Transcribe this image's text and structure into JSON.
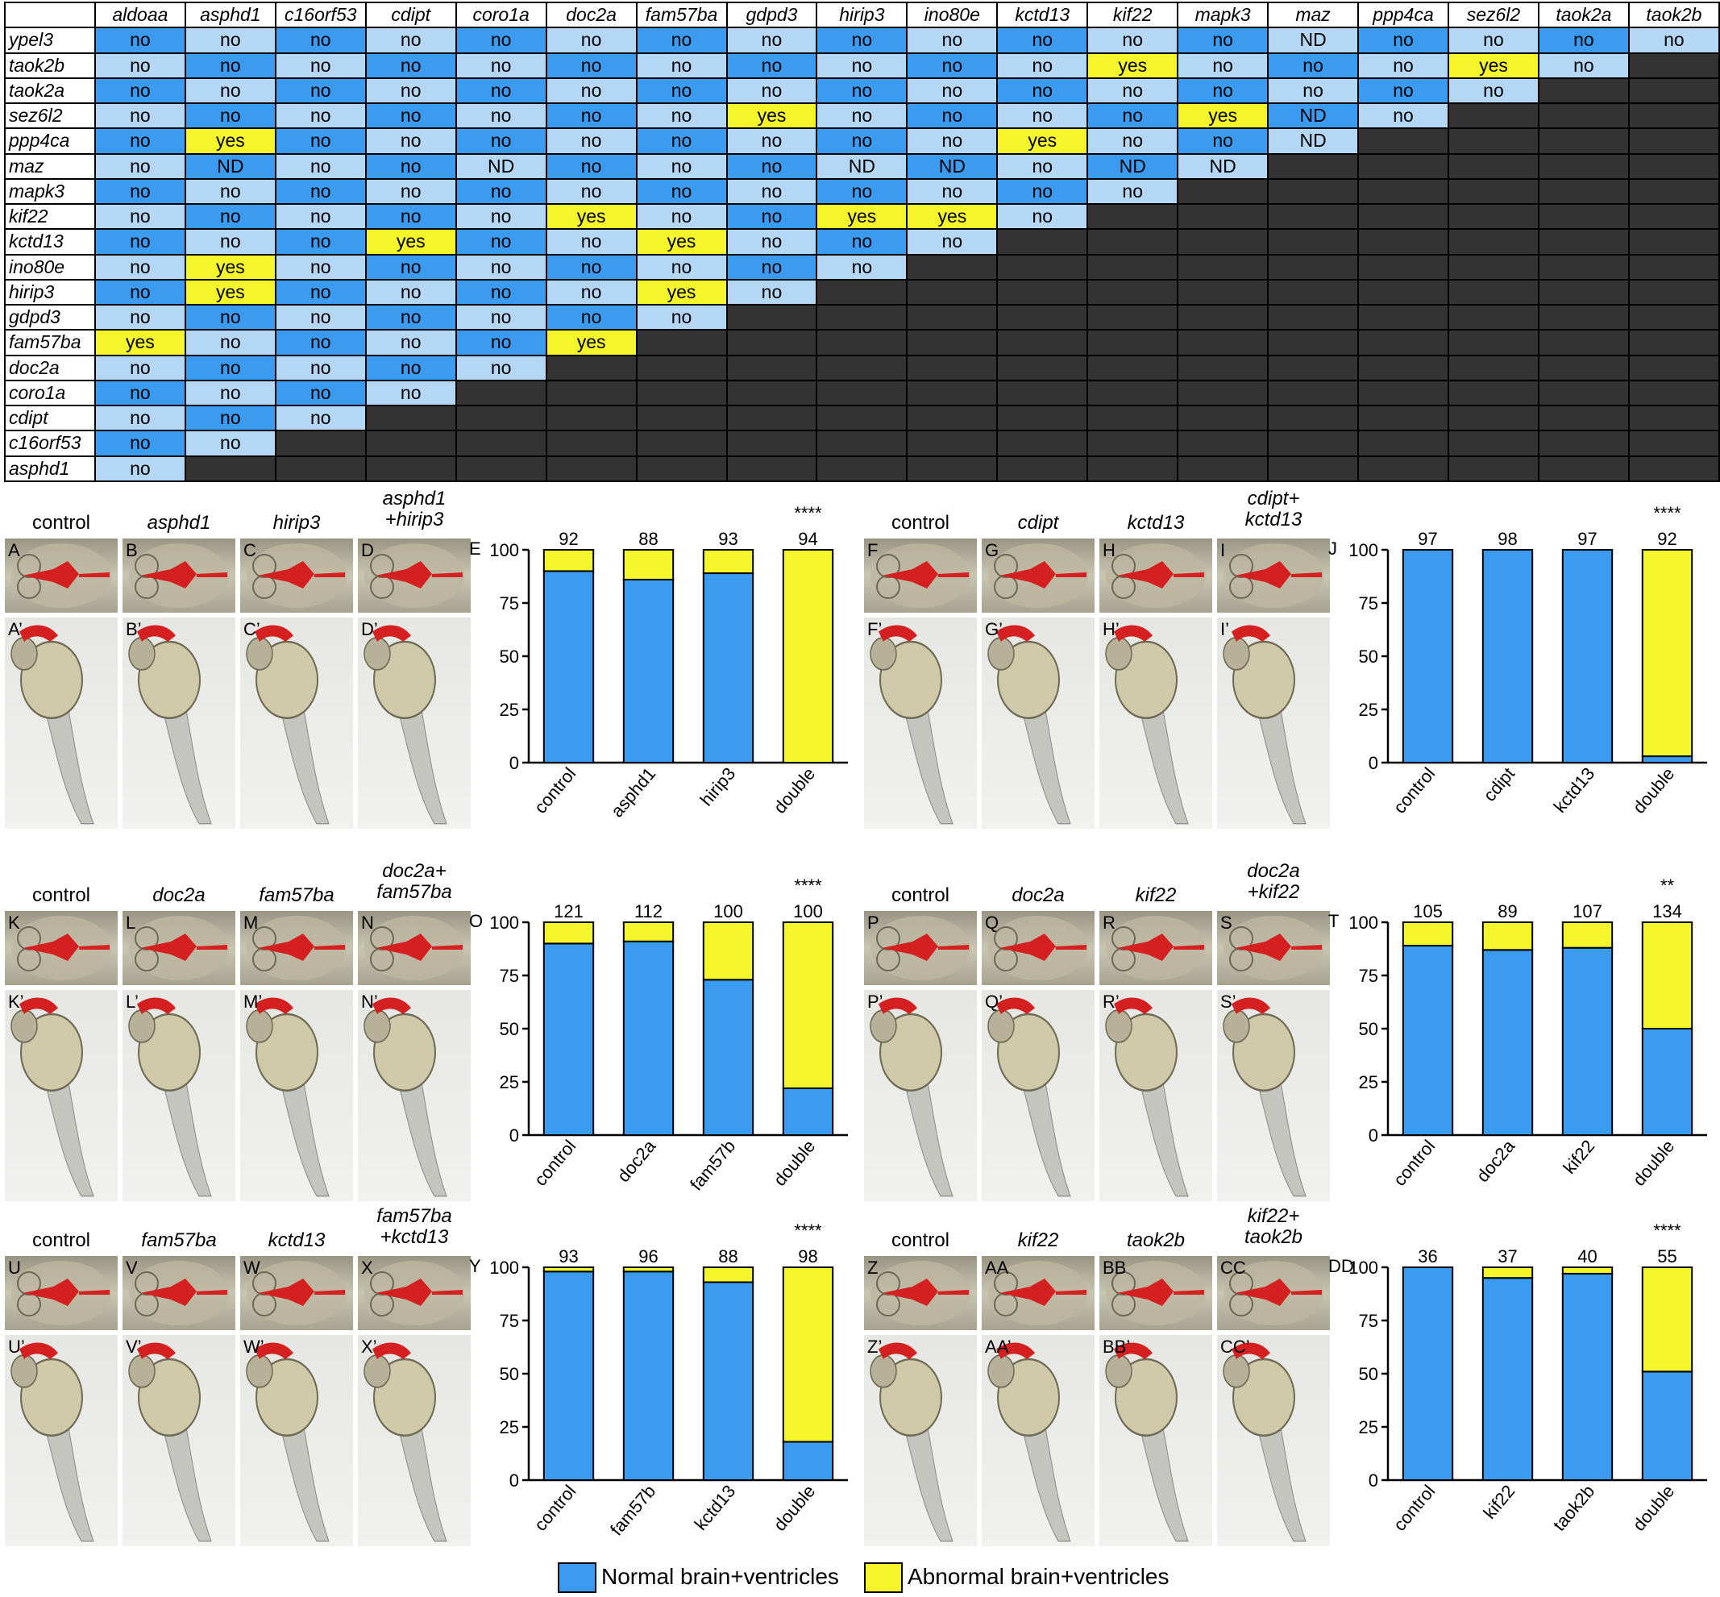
{
  "matrix": {
    "col_genes": [
      "aldoaa",
      "asphd1",
      "c16orf53",
      "cdipt",
      "coro1a",
      "doc2a",
      "fam57ba",
      "gdpd3",
      "hirip3",
      "ino80e",
      "kctd13",
      "kif22",
      "mapk3",
      "maz",
      "ppp4ca",
      "sez6l2",
      "taok2a",
      "taok2b"
    ],
    "row_genes": [
      "ypel3",
      "taok2b",
      "taok2a",
      "sez6l2",
      "ppp4ca",
      "maz",
      "mapk3",
      "kif22",
      "kctd13",
      "ino80e",
      "hirip3",
      "gdpd3",
      "fam57ba",
      "doc2a",
      "coro1a",
      "cdipt",
      "c16orf53",
      "asphd1"
    ],
    "cells": [
      [
        "no",
        "no",
        "no",
        "no",
        "no",
        "no",
        "no",
        "no",
        "no",
        "no",
        "no",
        "no",
        "no",
        "ND",
        "no",
        "no",
        "no",
        "no"
      ],
      [
        "no",
        "no",
        "no",
        "no",
        "no",
        "no",
        "no",
        "no",
        "no",
        "no",
        "no",
        "yes",
        "no",
        "no",
        "no",
        "yes",
        "no"
      ],
      [
        "no",
        "no",
        "no",
        "no",
        "no",
        "no",
        "no",
        "no",
        "no",
        "no",
        "no",
        "no",
        "no",
        "no",
        "no",
        "no"
      ],
      [
        "no",
        "no",
        "no",
        "no",
        "no",
        "no",
        "no",
        "yes",
        "no",
        "no",
        "no",
        "no",
        "yes",
        "ND",
        "no"
      ],
      [
        "no",
        "yes",
        "no",
        "no",
        "no",
        "no",
        "no",
        "no",
        "no",
        "no",
        "yes",
        "no",
        "no",
        "ND"
      ],
      [
        "no",
        "ND",
        "no",
        "no",
        "ND",
        "no",
        "no",
        "no",
        "ND",
        "ND",
        "no",
        "ND",
        "ND"
      ],
      [
        "no",
        "no",
        "no",
        "no",
        "no",
        "no",
        "no",
        "no",
        "no",
        "no",
        "no",
        "no"
      ],
      [
        "no",
        "no",
        "no",
        "no",
        "no",
        "yes",
        "no",
        "no",
        "yes",
        "yes",
        "no"
      ],
      [
        "no",
        "no",
        "no",
        "yes",
        "no",
        "no",
        "yes",
        "no",
        "no",
        "no"
      ],
      [
        "no",
        "yes",
        "no",
        "no",
        "no",
        "no",
        "no",
        "no",
        "no"
      ],
      [
        "no",
        "yes",
        "no",
        "no",
        "no",
        "no",
        "yes",
        "no"
      ],
      [
        "no",
        "no",
        "no",
        "no",
        "no",
        "no",
        "no"
      ],
      [
        "yes",
        "no",
        "no",
        "no",
        "no",
        "yes"
      ],
      [
        "no",
        "no",
        "no",
        "no",
        "no"
      ],
      [
        "no",
        "no",
        "no",
        "no"
      ],
      [
        "no",
        "no",
        "no"
      ],
      [
        "no",
        "no"
      ],
      [
        "no"
      ]
    ]
  },
  "colors": {
    "normal": "#3b9bf0",
    "abnormal": "#f5f52c",
    "normal_dark": "#1f78d0",
    "normal_light": "#b3d7f5",
    "empty": "#333333",
    "ventricle_red": "#d42020"
  },
  "panels": [
    {
      "id": "p1",
      "conditions": [
        {
          "text": "control",
          "italic": false
        },
        {
          "text": "asphd1",
          "italic": true
        },
        {
          "text": "hirip3",
          "italic": true
        },
        {
          "text": "asphd1\n+hirip3",
          "italic": true
        }
      ],
      "top_letters": [
        "A",
        "B",
        "C",
        "D"
      ],
      "bottom_letters": [
        "A’",
        "B’",
        "C’",
        "D’"
      ],
      "chart_letter": "E"
    },
    {
      "id": "p2",
      "conditions": [
        {
          "text": "control",
          "italic": false
        },
        {
          "text": "cdipt",
          "italic": true
        },
        {
          "text": "kctd13",
          "italic": true
        },
        {
          "text": "cdipt+\nkctd13",
          "italic": true
        }
      ],
      "top_letters": [
        "F",
        "G",
        "H",
        "I"
      ],
      "bottom_letters": [
        "F’",
        "G’",
        "H’",
        "I’"
      ],
      "chart_letter": "J"
    },
    {
      "id": "p3",
      "conditions": [
        {
          "text": "control",
          "italic": false
        },
        {
          "text": "doc2a",
          "italic": true
        },
        {
          "text": "fam57ba",
          "italic": true
        },
        {
          "text": "doc2a+\nfam57ba",
          "italic": true
        }
      ],
      "top_letters": [
        "K",
        "L",
        "M",
        "N"
      ],
      "bottom_letters": [
        "K’",
        "L’",
        "M’",
        "N’"
      ],
      "chart_letter": "O"
    },
    {
      "id": "p4",
      "conditions": [
        {
          "text": "control",
          "italic": false
        },
        {
          "text": "doc2a",
          "italic": true
        },
        {
          "text": "kif22",
          "italic": true
        },
        {
          "text": "doc2a\n+kif22",
          "italic": true
        }
      ],
      "top_letters": [
        "P",
        "Q",
        "R",
        "S"
      ],
      "bottom_letters": [
        "P’",
        "Q’",
        "R’",
        "S’"
      ],
      "chart_letter": "T"
    },
    {
      "id": "p5",
      "conditions": [
        {
          "text": "control",
          "italic": false
        },
        {
          "text": "fam57ba",
          "italic": true
        },
        {
          "text": "kctd13",
          "italic": true
        },
        {
          "text": "fam57ba\n+kctd13",
          "italic": true
        }
      ],
      "top_letters": [
        "U",
        "V",
        "W",
        "X"
      ],
      "bottom_letters": [
        "U’",
        "V’",
        "W’",
        "X’"
      ],
      "chart_letter": "Y"
    },
    {
      "id": "p6",
      "conditions": [
        {
          "text": "control",
          "italic": false
        },
        {
          "text": "kif22",
          "italic": true
        },
        {
          "text": "taok2b",
          "italic": true
        },
        {
          "text": "kif22+\ntaok2b",
          "italic": true
        }
      ],
      "top_letters": [
        "Z",
        "AA",
        "BB",
        "CC"
      ],
      "bottom_letters": [
        "Z’",
        "AA’",
        "BB’",
        "CC’"
      ],
      "chart_letter": "DD"
    }
  ],
  "chart_data": [
    {
      "type": "bar",
      "stacked": true,
      "categories": [
        "control",
        "asphd1",
        "hirip3",
        "double"
      ],
      "series": [
        {
          "values": [
            90,
            86,
            89,
            0
          ]
        },
        {
          "values": [
            10,
            14,
            11,
            100
          ]
        }
      ],
      "n_labels": [
        "92",
        "88",
        "93",
        "94"
      ],
      "significance": [
        "",
        "",
        "",
        "****"
      ],
      "ylim": [
        0,
        100
      ],
      "yticks": [
        0,
        25,
        50,
        75,
        100
      ]
    },
    {
      "type": "bar",
      "stacked": true,
      "categories": [
        "control",
        "cdipt",
        "kctd13",
        "double"
      ],
      "series": [
        {
          "values": [
            100,
            100,
            100,
            3
          ]
        },
        {
          "values": [
            0,
            0,
            0,
            97
          ]
        }
      ],
      "n_labels": [
        "97",
        "98",
        "97",
        "92"
      ],
      "significance": [
        "",
        "",
        "",
        "****"
      ],
      "ylim": [
        0,
        100
      ],
      "yticks": [
        0,
        25,
        50,
        75,
        100
      ]
    },
    {
      "type": "bar",
      "stacked": true,
      "categories": [
        "control",
        "doc2a",
        "fam57b",
        "double"
      ],
      "series": [
        {
          "values": [
            90,
            91,
            73,
            22
          ]
        },
        {
          "values": [
            10,
            9,
            27,
            78
          ]
        }
      ],
      "n_labels": [
        "121",
        "112",
        "100",
        "100"
      ],
      "significance": [
        "",
        "",
        "",
        "****"
      ],
      "ylim": [
        0,
        100
      ],
      "yticks": [
        0,
        25,
        50,
        75,
        100
      ]
    },
    {
      "type": "bar",
      "stacked": true,
      "categories": [
        "control",
        "doc2a",
        "kif22",
        "double"
      ],
      "series": [
        {
          "values": [
            89,
            87,
            88,
            50
          ]
        },
        {
          "values": [
            11,
            13,
            12,
            50
          ]
        }
      ],
      "n_labels": [
        "105",
        "89",
        "107",
        "134"
      ],
      "significance": [
        "",
        "",
        "",
        "**"
      ],
      "ylim": [
        0,
        100
      ],
      "yticks": [
        0,
        25,
        50,
        75,
        100
      ]
    },
    {
      "type": "bar",
      "stacked": true,
      "categories": [
        "control",
        "fam57b",
        "kctd13",
        "double"
      ],
      "series": [
        {
          "values": [
            98,
            98,
            93,
            18
          ]
        },
        {
          "values": [
            2,
            2,
            7,
            82
          ]
        }
      ],
      "n_labels": [
        "93",
        "96",
        "88",
        "98"
      ],
      "significance": [
        "",
        "",
        "",
        "****"
      ],
      "ylim": [
        0,
        100
      ],
      "yticks": [
        0,
        25,
        50,
        75,
        100
      ]
    },
    {
      "type": "bar",
      "stacked": true,
      "categories": [
        "control",
        "kif22",
        "taok2b",
        "double"
      ],
      "series": [
        {
          "values": [
            100,
            95,
            97,
            51
          ]
        },
        {
          "values": [
            0,
            5,
            3,
            49
          ]
        }
      ],
      "n_labels": [
        "36",
        "37",
        "40",
        "55"
      ],
      "significance": [
        "",
        "",
        "",
        "****"
      ],
      "ylim": [
        0,
        100
      ],
      "yticks": [
        0,
        25,
        50,
        75,
        100
      ]
    }
  ],
  "legend": {
    "normal": "Normal brain+ventricles",
    "abnormal": "Abnormal brain+ventricles"
  }
}
